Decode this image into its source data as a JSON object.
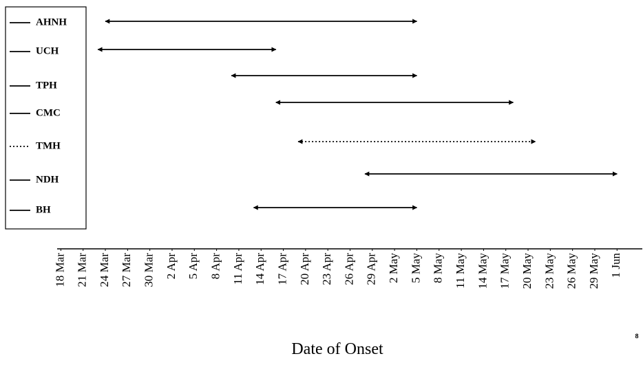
{
  "chart_data": {
    "type": "range",
    "x_label": "Date of Onset",
    "page_number": "8",
    "xlim": [
      76.5,
      155.5
    ],
    "xticks": [
      {
        "value": 77,
        "label": "18 Mar"
      },
      {
        "value": 80,
        "label": "21 Mar"
      },
      {
        "value": 83,
        "label": "24 Mar"
      },
      {
        "value": 86,
        "label": "27 Mar"
      },
      {
        "value": 89,
        "label": "30 Mar"
      },
      {
        "value": 92,
        "label": "2 Apr"
      },
      {
        "value": 95,
        "label": "5 Apr"
      },
      {
        "value": 98,
        "label": "8 Apr"
      },
      {
        "value": 101,
        "label": "11 Apr"
      },
      {
        "value": 104,
        "label": "14 Apr"
      },
      {
        "value": 107,
        "label": "17 Apr"
      },
      {
        "value": 110,
        "label": "20 Apr"
      },
      {
        "value": 113,
        "label": "23 Apr"
      },
      {
        "value": 116,
        "label": "26 Apr"
      },
      {
        "value": 119,
        "label": "29 Apr"
      },
      {
        "value": 122,
        "label": "2 May"
      },
      {
        "value": 125,
        "label": "5 May"
      },
      {
        "value": 128,
        "label": "8 May"
      },
      {
        "value": 131,
        "label": "11 May"
      },
      {
        "value": 134,
        "label": "14 May"
      },
      {
        "value": 137,
        "label": "17 May"
      },
      {
        "value": 140,
        "label": "20 May"
      },
      {
        "value": 143,
        "label": "23 May"
      },
      {
        "value": 146,
        "label": "26 May"
      },
      {
        "value": 149,
        "label": "29 May"
      },
      {
        "value": 152,
        "label": "1 Jun"
      }
    ],
    "series": [
      {
        "name": "AHNH",
        "start": 83,
        "end": 125,
        "style": "solid",
        "color": "#000000"
      },
      {
        "name": "UCH",
        "start": 82,
        "end": 106,
        "style": "solid",
        "color": "#000000"
      },
      {
        "name": "TPH",
        "start": 100,
        "end": 125,
        "style": "solid",
        "color": "#000000"
      },
      {
        "name": "CMC",
        "start": 106,
        "end": 138,
        "style": "solid",
        "color": "#000000"
      },
      {
        "name": "TMH",
        "start": 109,
        "end": 141,
        "style": "dotted",
        "color": "#000000"
      },
      {
        "name": "NDH",
        "start": 118,
        "end": 152,
        "style": "solid",
        "color": "#000000"
      },
      {
        "name": "BH",
        "start": 103,
        "end": 125,
        "style": "solid",
        "color": "#000000"
      }
    ]
  }
}
